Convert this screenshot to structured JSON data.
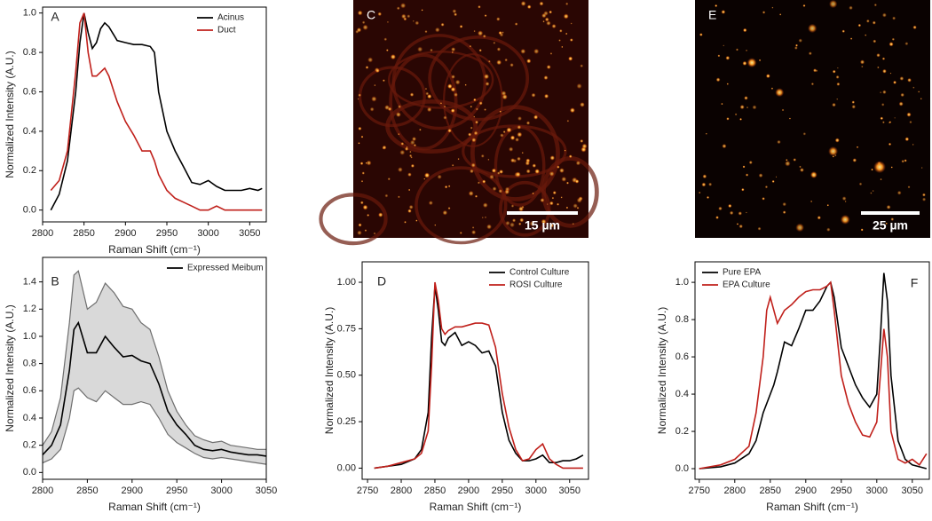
{
  "chart_data": [
    {
      "type": "line",
      "label": "A",
      "xlabel": "Raman Shift (cm⁻¹)",
      "ylabel": "Normalized Intensity (A.U.)",
      "x": [
        2810,
        2820,
        2830,
        2840,
        2845,
        2850,
        2855,
        2860,
        2865,
        2870,
        2875,
        2880,
        2890,
        2900,
        2910,
        2920,
        2930,
        2935,
        2940,
        2950,
        2960,
        2970,
        2980,
        2990,
        3000,
        3010,
        3020,
        3030,
        3040,
        3050,
        3060,
        3065
      ],
      "series": [
        {
          "name": "Acinus",
          "color": "#000000",
          "values": [
            0.0,
            0.08,
            0.25,
            0.6,
            0.85,
            1.0,
            0.9,
            0.82,
            0.85,
            0.92,
            0.95,
            0.93,
            0.86,
            0.85,
            0.84,
            0.84,
            0.83,
            0.8,
            0.6,
            0.4,
            0.3,
            0.22,
            0.14,
            0.13,
            0.15,
            0.12,
            0.1,
            0.1,
            0.1,
            0.11,
            0.1,
            0.11
          ]
        },
        {
          "name": "Duct",
          "color": "#c0201b",
          "values": [
            0.1,
            0.15,
            0.3,
            0.7,
            0.95,
            1.0,
            0.8,
            0.68,
            0.68,
            0.7,
            0.72,
            0.68,
            0.55,
            0.45,
            0.38,
            0.3,
            0.3,
            0.25,
            0.18,
            0.1,
            0.06,
            0.04,
            0.02,
            0.0,
            0.0,
            0.02,
            0.0,
            0.0,
            0.0,
            0.0,
            0.0,
            0.0
          ]
        }
      ],
      "xlim": [
        2800,
        3070
      ],
      "xticks": [
        2800,
        2850,
        2900,
        2950,
        3000,
        3050
      ],
      "ylim": [
        -0.06,
        1.03
      ],
      "yticks": [
        {
          "value": 0,
          "label": "0.0"
        },
        0.2,
        0.4,
        0.6,
        0.8,
        {
          "value": 1,
          "label": "1.0"
        }
      ],
      "legend": "upper right"
    },
    {
      "type": "line",
      "label": "B",
      "xlabel": "Raman Shift (cm⁻¹)",
      "ylabel": "Normalized Intensity (A.U.)",
      "x": [
        2800,
        2810,
        2820,
        2830,
        2835,
        2840,
        2850,
        2860,
        2870,
        2880,
        2890,
        2900,
        2910,
        2920,
        2930,
        2940,
        2950,
        2960,
        2970,
        2980,
        2990,
        3000,
        3010,
        3020,
        3030,
        3040,
        3050
      ],
      "series": [
        {
          "name": "Expressed Meibum",
          "color": "#000000",
          "values": [
            0.13,
            0.2,
            0.35,
            0.75,
            1.05,
            1.1,
            0.88,
            0.88,
            1.0,
            0.92,
            0.85,
            0.86,
            0.82,
            0.8,
            0.65,
            0.45,
            0.35,
            0.28,
            0.2,
            0.17,
            0.16,
            0.17,
            0.15,
            0.14,
            0.13,
            0.13,
            0.12
          ]
        }
      ],
      "band": {
        "color": "#d9d9d9",
        "edge_color": "#6e6e6e",
        "upper": [
          0.2,
          0.3,
          0.55,
          1.1,
          1.45,
          1.48,
          1.2,
          1.25,
          1.39,
          1.32,
          1.22,
          1.2,
          1.1,
          1.05,
          0.85,
          0.6,
          0.45,
          0.35,
          0.27,
          0.24,
          0.22,
          0.23,
          0.2,
          0.19,
          0.18,
          0.17,
          0.17
        ],
        "lower": [
          0.07,
          0.1,
          0.17,
          0.4,
          0.6,
          0.62,
          0.55,
          0.52,
          0.6,
          0.55,
          0.5,
          0.5,
          0.52,
          0.5,
          0.4,
          0.28,
          0.22,
          0.18,
          0.14,
          0.11,
          0.1,
          0.11,
          0.1,
          0.09,
          0.08,
          0.07,
          0.06
        ]
      },
      "xlim": [
        2800,
        3050
      ],
      "xticks": [
        2800,
        2850,
        2900,
        2950,
        3000,
        3050
      ],
      "ylim": [
        -0.05,
        1.58
      ],
      "yticks": [
        {
          "value": 0,
          "label": "0.0"
        },
        0.2,
        0.4,
        0.6,
        0.8,
        {
          "value": 1,
          "label": "1.0"
        },
        1.2,
        1.4
      ],
      "legend": "upper right"
    },
    {
      "type": "image",
      "label": "C",
      "scale_bar": "15 µm"
    },
    {
      "type": "line",
      "label": "D",
      "xlabel": "Raman Shift (cm⁻¹)",
      "ylabel": "Normalized Intensity (A.U.)",
      "x": [
        2760,
        2780,
        2800,
        2820,
        2830,
        2840,
        2845,
        2850,
        2855,
        2860,
        2865,
        2870,
        2880,
        2890,
        2900,
        2910,
        2920,
        2930,
        2940,
        2950,
        2960,
        2970,
        2980,
        2990,
        3000,
        3010,
        3020,
        3030,
        3040,
        3050,
        3060,
        3070
      ],
      "series": [
        {
          "name": "Control Culture",
          "color": "#000000",
          "values": [
            0.0,
            0.01,
            0.02,
            0.05,
            0.1,
            0.3,
            0.7,
            0.98,
            0.85,
            0.68,
            0.66,
            0.7,
            0.73,
            0.66,
            0.68,
            0.66,
            0.62,
            0.63,
            0.55,
            0.3,
            0.15,
            0.08,
            0.04,
            0.04,
            0.05,
            0.07,
            0.03,
            0.03,
            0.04,
            0.04,
            0.05,
            0.07
          ]
        },
        {
          "name": "ROSI Culture",
          "color": "#c0201b",
          "values": [
            0.0,
            0.01,
            0.03,
            0.05,
            0.08,
            0.2,
            0.55,
            1.0,
            0.9,
            0.75,
            0.72,
            0.74,
            0.76,
            0.76,
            0.77,
            0.78,
            0.78,
            0.77,
            0.65,
            0.4,
            0.22,
            0.1,
            0.04,
            0.05,
            0.1,
            0.13,
            0.05,
            0.02,
            0.0,
            0.0,
            0.0,
            0.0
          ]
        }
      ],
      "xlim": [
        2742,
        3078
      ],
      "xticks": [
        2750,
        2800,
        2850,
        2900,
        2950,
        3000,
        3050
      ],
      "ylim": [
        -0.06,
        1.11
      ],
      "yticks": [
        {
          "value": 0,
          "label": "0.00"
        },
        0.25,
        {
          "value": 0.5,
          "label": "0.50"
        },
        0.75,
        {
          "value": 1,
          "label": "1.00"
        }
      ],
      "legend": "upper right"
    },
    {
      "type": "image",
      "label": "E",
      "scale_bar": "25 µm"
    },
    {
      "type": "line",
      "label": "F",
      "xlabel": "Raman Shift (cm⁻¹)",
      "ylabel": "Normalized Intensity (A.U.)",
      "x": [
        2750,
        2780,
        2800,
        2820,
        2830,
        2840,
        2845,
        2850,
        2855,
        2860,
        2870,
        2880,
        2890,
        2900,
        2910,
        2920,
        2930,
        2935,
        2940,
        2950,
        2960,
        2970,
        2980,
        2990,
        3000,
        3005,
        3010,
        3015,
        3020,
        3030,
        3040,
        3050,
        3060,
        3070
      ],
      "series": [
        {
          "name": "Pure EPA",
          "color": "#000000",
          "values": [
            0.0,
            0.01,
            0.03,
            0.08,
            0.15,
            0.3,
            0.35,
            0.4,
            0.45,
            0.52,
            0.68,
            0.66,
            0.75,
            0.85,
            0.85,
            0.9,
            0.98,
            1.0,
            0.92,
            0.65,
            0.55,
            0.45,
            0.38,
            0.33,
            0.4,
            0.7,
            1.05,
            0.9,
            0.5,
            0.15,
            0.05,
            0.02,
            0.01,
            0.0
          ]
        },
        {
          "name": "EPA Culture",
          "color": "#c0201b",
          "values": [
            0.0,
            0.02,
            0.05,
            0.12,
            0.3,
            0.6,
            0.85,
            0.92,
            0.85,
            0.78,
            0.85,
            0.88,
            0.92,
            0.95,
            0.96,
            0.96,
            0.98,
            1.0,
            0.85,
            0.5,
            0.35,
            0.25,
            0.18,
            0.17,
            0.25,
            0.5,
            0.75,
            0.6,
            0.2,
            0.05,
            0.03,
            0.05,
            0.02,
            0.08
          ]
        }
      ],
      "xlim": [
        2744,
        3074
      ],
      "xticks": [
        2750,
        2800,
        2850,
        2900,
        2950,
        3000,
        3050
      ],
      "ylim": [
        -0.057,
        1.11
      ],
      "yticks": [
        {
          "value": 0,
          "label": "0.0"
        },
        0.2,
        0.4,
        0.6,
        0.8,
        {
          "value": 1,
          "label": "1.0"
        }
      ],
      "legend": "upper left"
    }
  ]
}
